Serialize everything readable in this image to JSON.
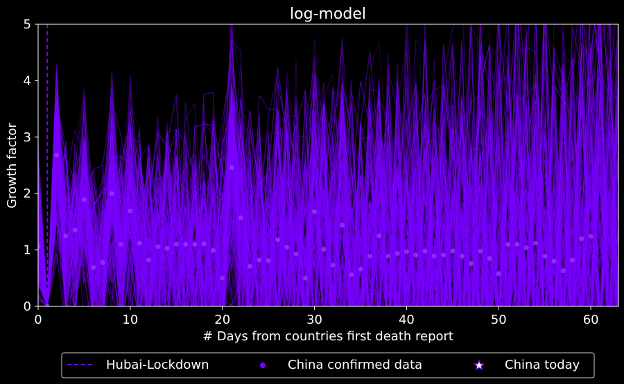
{
  "chart_data": {
    "type": "scatter",
    "title": "log-model",
    "xlabel": "# Days from countries first death report",
    "ylabel": "Growth factor",
    "xlim": [
      0,
      63
    ],
    "ylim": [
      0,
      5
    ],
    "xticks": [
      0,
      10,
      20,
      30,
      40,
      50,
      60
    ],
    "yticks": [
      0,
      1,
      2,
      3,
      4,
      5
    ],
    "grid": false,
    "legend_position": "bottom",
    "colors": {
      "background": "#000000",
      "series": "#7a00ff",
      "lockdown": "#7a00ff",
      "text": "#ffffff"
    },
    "lockdown_day": 1,
    "series": [
      {
        "name": "China confirmed data",
        "x": [
          0,
          1,
          2,
          3,
          4,
          5,
          6,
          7,
          8,
          9,
          10,
          11,
          12,
          13,
          14,
          15,
          16,
          17,
          18,
          19,
          20,
          21,
          22,
          23,
          24,
          25,
          26,
          27,
          28,
          29,
          30,
          31,
          32,
          33,
          34,
          35,
          36,
          37,
          38,
          39,
          40,
          41,
          42,
          43,
          44,
          45,
          46,
          47,
          48,
          49,
          50,
          51,
          52,
          53,
          54,
          55,
          56,
          57,
          58,
          59,
          60
        ],
        "y": [
          1.06,
          0,
          2.68,
          1.25,
          1.35,
          1.89,
          0.69,
          0.78,
          2.0,
          1.1,
          1.69,
          1.12,
          0.82,
          1.06,
          1.03,
          1.1,
          1.1,
          1.1,
          1.11,
          0.99,
          0.5,
          2.46,
          1.57,
          0.71,
          0.82,
          0.81,
          1.18,
          1.05,
          0.93,
          0.5,
          1.68,
          1.01,
          0.73,
          1.44,
          0.56,
          0.66,
          0.89,
          1.25,
          0.89,
          0.94,
          0.97,
          0.91,
          0.98,
          0.89,
          0.91,
          0.98,
          0.89,
          0.76,
          0.98,
          0.85,
          0.58,
          1.1,
          1.1,
          1.04,
          1.12,
          0.89,
          0.8,
          0.63,
          0.82,
          1.2,
          1.24
        ]
      },
      {
        "name": "China today",
        "x": [],
        "y": []
      }
    ],
    "legend": [
      {
        "label": "Hubai-Lockdown",
        "marker": "dashed-line"
      },
      {
        "label": "China confirmed data",
        "marker": "dot"
      },
      {
        "label": "China today",
        "marker": "star"
      }
    ]
  }
}
